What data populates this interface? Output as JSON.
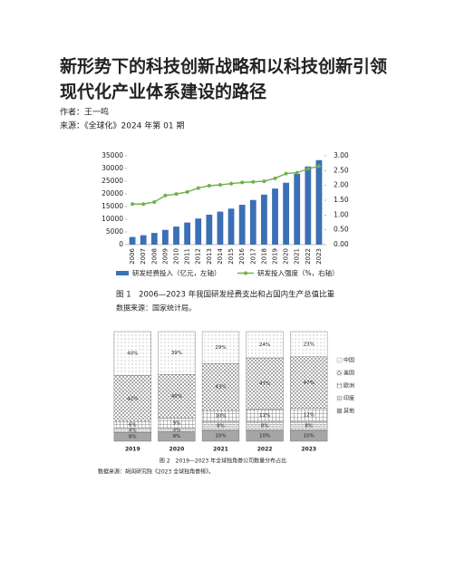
{
  "document": {
    "title_lines": [
      "新形势下的科技创新战略和以科技创新引领",
      "现代化产业体系建设的路径"
    ],
    "author": "作者：王一鸣",
    "source": "来源：《全球化》2024 年第 01 期"
  },
  "chart_data": [
    {
      "type": "combo",
      "categories": [
        "2006",
        "2007",
        "2008",
        "2009",
        "2010",
        "2011",
        "2012",
        "2013",
        "2014",
        "2015",
        "2016",
        "2017",
        "2018",
        "2019",
        "2020",
        "2021",
        "2022",
        "2023"
      ],
      "series": [
        {
          "name": "研发经费投入（亿元，左轴）",
          "color": "#3b6fb6",
          "type": "bar",
          "values": [
            3000,
            3700,
            4600,
            5800,
            7100,
            8700,
            10300,
            11800,
            13000,
            14200,
            15700,
            17600,
            19700,
            22100,
            24400,
            27900,
            30800,
            33300
          ]
        },
        {
          "name": "研发投入强度（%，右轴）",
          "color": "#70b04a",
          "type": "line",
          "axis": "y2",
          "values": [
            1.37,
            1.37,
            1.44,
            1.66,
            1.71,
            1.78,
            1.91,
            1.99,
            2.02,
            2.06,
            2.1,
            2.12,
            2.14,
            2.24,
            2.4,
            2.43,
            2.56,
            2.65
          ]
        }
      ],
      "ylim": [
        0,
        35000
      ],
      "yticks": [
        0,
        5000,
        10000,
        15000,
        20000,
        25000,
        30000,
        35000
      ],
      "y2lim": [
        0,
        3
      ],
      "y2ticks": [
        {
          "value": 0,
          "label": "0.00"
        },
        {
          "value": 0.5,
          "label": "0.50"
        },
        {
          "value": 1,
          "label": "1.00"
        },
        {
          "value": 1.5,
          "label": "1.50"
        },
        {
          "value": 2,
          "label": "2.00"
        },
        {
          "value": 2.5,
          "label": "2.50"
        },
        {
          "value": 3,
          "label": "3.00"
        }
      ],
      "caption": "图 1　2006—2023 年我国研发经费支出和占国内生产总值比重",
      "note": "数据来源：国家统计局。"
    },
    {
      "type": "stacked",
      "categories": [
        "2019",
        "2020",
        "2021",
        "2022",
        "2023"
      ],
      "legend": "right",
      "series": [
        {
          "name": "中国",
          "color": "#777777",
          "values": [
            40,
            39,
            29,
            24,
            23
          ],
          "value_labels": [
            "40%",
            "39%",
            "29%",
            "24%",
            "23%"
          ]
        },
        {
          "name": "美国",
          "color": "#555555",
          "values": [
            42,
            40,
            43,
            47,
            47
          ],
          "value_labels": [
            "42%",
            "40%",
            "43%",
            "47%",
            "47%"
          ]
        },
        {
          "name": "欧洲",
          "color": "#666666",
          "values": [
            6,
            9,
            10,
            11,
            12
          ],
          "value_labels": [
            "6%",
            "9%",
            "10%",
            "11%",
            "12%"
          ]
        },
        {
          "name": "印度",
          "color": "#666666",
          "values": [
            4,
            3,
            8,
            8,
            8
          ],
          "value_labels": [
            "4%",
            "3%",
            "8%",
            "8%",
            "8%"
          ]
        },
        {
          "name": "其他",
          "color": "#a6a6a6",
          "values": [
            8,
            9,
            10,
            10,
            10
          ],
          "value_labels": [
            "8%",
            "9%",
            "10%",
            "10%",
            "10%"
          ]
        }
      ],
      "caption": "图 2　2019—2023 年全球独角兽公司数量分布占比",
      "note": "数据来源：胡润研究院《2023 全球独角兽榜》。"
    }
  ]
}
